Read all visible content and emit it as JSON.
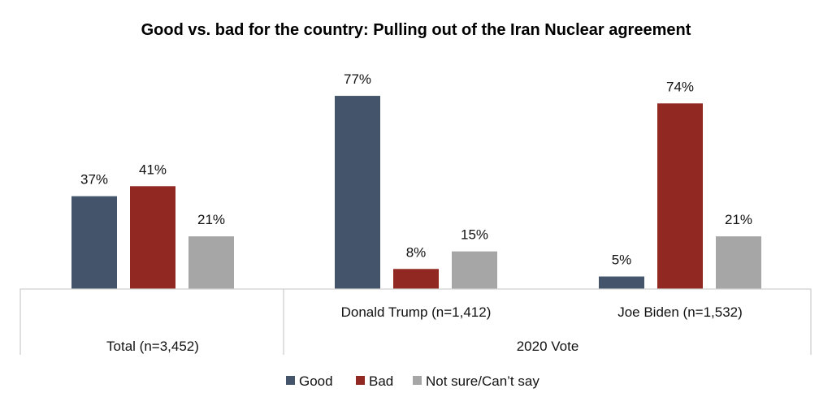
{
  "chart_data": {
    "type": "bar",
    "title": "Good vs. bad for the country: Pulling out of the Iran Nuclear agreement",
    "xlabel": "",
    "ylabel": "",
    "ylim": [
      0,
      80
    ],
    "grid": false,
    "legend_position": "bottom",
    "categories": [
      "Total (n=3,452)",
      "Donald Trump (n=1,412)",
      "Joe Biden (n=1,532)"
    ],
    "category_groups": [
      {
        "label": "",
        "members": [
          "Total (n=3,452)"
        ]
      },
      {
        "label": "2020 Vote",
        "members": [
          "Donald Trump (n=1,412)",
          "Joe Biden (n=1,532)"
        ]
      }
    ],
    "series": [
      {
        "name": "Good",
        "color": "#44546a",
        "values": [
          37,
          77,
          5
        ],
        "labels": [
          "37%",
          "77%",
          "5%"
        ]
      },
      {
        "name": "Bad",
        "color": "#922822",
        "values": [
          41,
          8,
          74
        ],
        "labels": [
          "41%",
          "8%",
          "74%"
        ]
      },
      {
        "name": "Not sure/Can’t say",
        "color": "#a6a6a6",
        "values": [
          21,
          15,
          21
        ],
        "labels": [
          "21%",
          "15%",
          "21%"
        ]
      }
    ]
  }
}
